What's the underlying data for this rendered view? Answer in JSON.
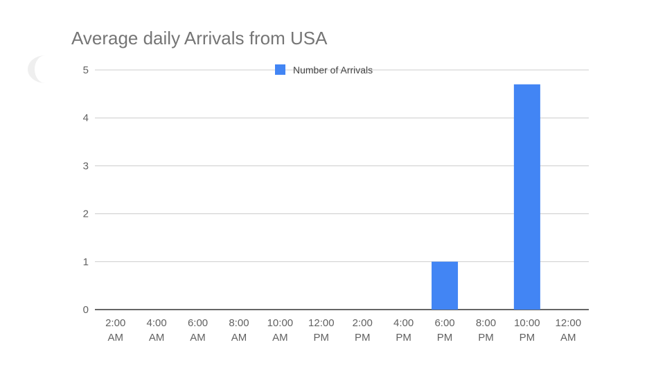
{
  "chart_data": {
    "type": "bar",
    "title": "Average daily Arrivals from USA",
    "xlabel": "",
    "ylabel": "",
    "categories": [
      [
        "2:00",
        "AM"
      ],
      [
        "4:00",
        "AM"
      ],
      [
        "6:00",
        "AM"
      ],
      [
        "8:00",
        "AM"
      ],
      [
        "10:00",
        "AM"
      ],
      [
        "12:00",
        "PM"
      ],
      [
        "2:00",
        "PM"
      ],
      [
        "4:00",
        "PM"
      ],
      [
        "6:00",
        "PM"
      ],
      [
        "8:00",
        "PM"
      ],
      [
        "10:00",
        "PM"
      ],
      [
        "12:00",
        "AM"
      ]
    ],
    "series": [
      {
        "name": "Number of Arrivals",
        "color": "#4285f4",
        "values": [
          0,
          0,
          0,
          0,
          0,
          0,
          0,
          0,
          1,
          0,
          4.7,
          0
        ]
      }
    ],
    "ylim": [
      0,
      5
    ],
    "yticks": [
      0,
      1,
      2,
      3,
      4,
      5
    ],
    "grid": true,
    "legend_position": "top-center"
  }
}
